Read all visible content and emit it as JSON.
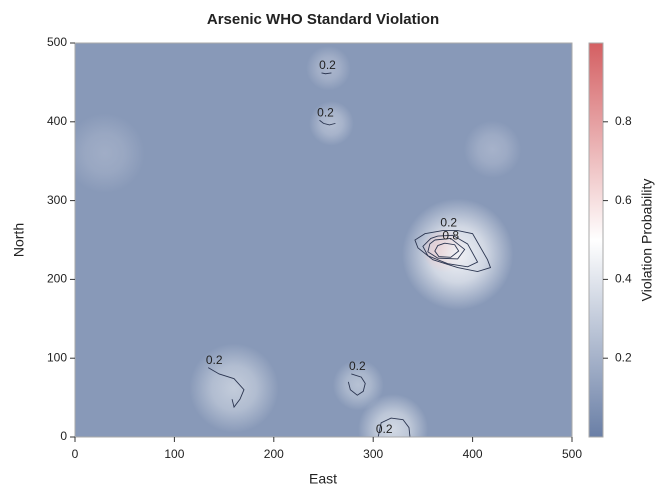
{
  "chart_data": {
    "type": "contour",
    "title": "Arsenic WHO Standard Violation",
    "xlabel": "East",
    "ylabel": "North",
    "xlim": [
      0,
      500
    ],
    "ylim": [
      0,
      500
    ],
    "xticks": [
      0,
      100,
      200,
      300,
      400,
      500
    ],
    "yticks": [
      0,
      100,
      200,
      300,
      400,
      500
    ],
    "colorbar_label": "Violation Probability",
    "clim": [
      0,
      1
    ],
    "cticks": [
      0.2,
      0.4,
      0.6,
      0.8
    ],
    "colormap": [
      "#6a7fa6",
      "#ffffff",
      "#d45f62"
    ],
    "field": {
      "base": 0.1,
      "peaks": [
        {
          "x": 372,
          "y": 237,
          "value": 0.97,
          "radius": 14
        },
        {
          "x": 385,
          "y": 232,
          "value": 0.45,
          "radius": 35
        },
        {
          "x": 258,
          "y": 398,
          "value": 0.25,
          "radius": 14
        },
        {
          "x": 255,
          "y": 468,
          "value": 0.22,
          "radius": 14
        },
        {
          "x": 160,
          "y": 62,
          "value": 0.3,
          "radius": 28
        },
        {
          "x": 285,
          "y": 66,
          "value": 0.26,
          "radius": 16
        },
        {
          "x": 320,
          "y": 10,
          "value": 0.35,
          "radius": 22
        },
        {
          "x": 420,
          "y": 365,
          "value": 0.2,
          "radius": 18
        },
        {
          "x": 30,
          "y": 360,
          "value": 0.18,
          "radius": 25
        }
      ]
    },
    "contours": [
      {
        "level": 0.2,
        "labeled": true,
        "x": [
          248,
          252,
          258
        ],
        "y": [
          462,
          461,
          462
        ]
      },
      {
        "level": 0.2,
        "labeled": true,
        "x": [
          246,
          250,
          256,
          262
        ],
        "y": [
          402,
          398,
          396,
          398
        ]
      },
      {
        "level": 0.2,
        "labeled": true,
        "x": [
          370,
          385,
          400,
          415,
          418,
          405,
          385,
          360,
          345,
          342,
          352,
          370
        ],
        "y": [
          262,
          262,
          258,
          225,
          215,
          210,
          215,
          225,
          240,
          250,
          258,
          262
        ]
      },
      {
        "level": 0.4,
        "labeled": false,
        "x": [
          365,
          380,
          395,
          405,
          395,
          375,
          355,
          350,
          358,
          365
        ],
        "y": [
          255,
          256,
          245,
          222,
          216,
          220,
          230,
          242,
          252,
          255
        ]
      },
      {
        "level": 0.6,
        "labeled": false,
        "x": [
          362,
          378,
          392,
          385,
          365,
          355,
          357,
          362
        ],
        "y": [
          250,
          252,
          238,
          226,
          227,
          235,
          245,
          250
        ]
      },
      {
        "level": 0.8,
        "labeled": true,
        "x": [
          372,
          382,
          386,
          378,
          366,
          362,
          365,
          372
        ],
        "y": [
          246,
          244,
          236,
          228,
          229,
          236,
          243,
          246
        ]
      },
      {
        "level": 0.2,
        "labeled": true,
        "x": [
          134,
          145,
          160,
          170,
          166,
          160,
          158
        ],
        "y": [
          88,
          80,
          74,
          60,
          48,
          38,
          48
        ]
      },
      {
        "level": 0.2,
        "labeled": true,
        "x": [
          278,
          288,
          292,
          290,
          284,
          277,
          275
        ],
        "y": [
          80,
          76,
          68,
          58,
          53,
          60,
          70
        ]
      },
      {
        "level": 0.2,
        "labeled": true,
        "x": [
          305,
          308,
          318,
          330,
          336,
          337
        ],
        "y": [
          0,
          18,
          24,
          22,
          12,
          0
        ]
      }
    ]
  }
}
